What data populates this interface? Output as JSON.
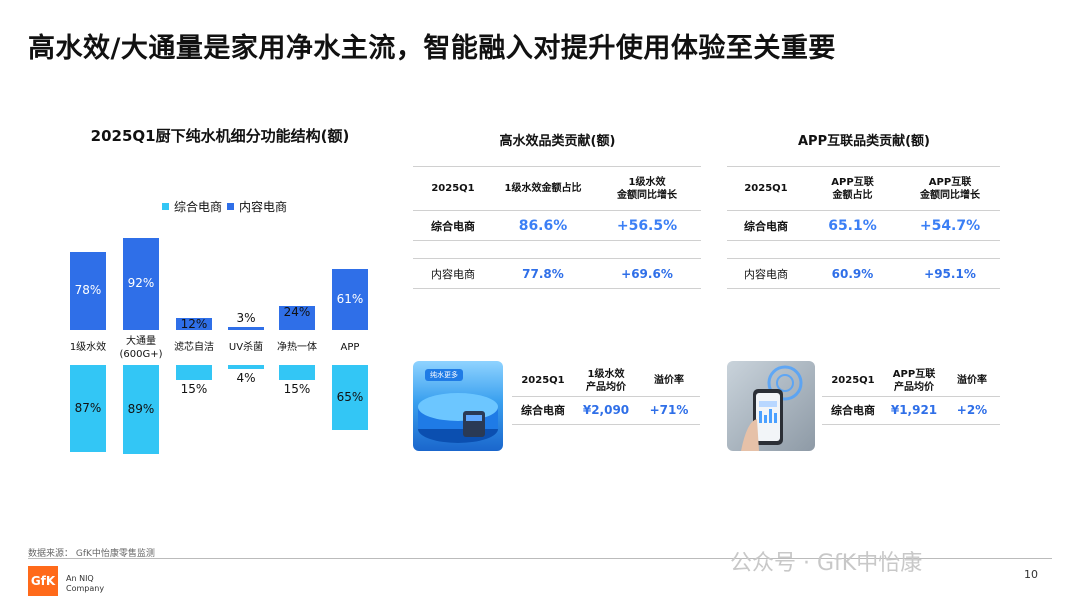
{
  "title": "高水效/大通量是家用净水主流，智能融入对提升使用体验至关重要",
  "chart_data": {
    "type": "bar",
    "title": "2025Q1厨下纯水机细分功能结构(额)",
    "categories": [
      "1级水效",
      "大通量(600G+)",
      "滤芯自洁",
      "UV杀菌",
      "净热一体",
      "APP"
    ],
    "category_labels": [
      [
        "1级水效"
      ],
      [
        "大通量",
        "(600G+)"
      ],
      [
        "滤芯自洁"
      ],
      [
        "UV杀菌"
      ],
      [
        "净热一体"
      ],
      [
        "APP"
      ]
    ],
    "series": [
      {
        "name": "综合电商",
        "color": "#33c6f5",
        "values": [
          87,
          89,
          15,
          4,
          15,
          65
        ],
        "labels": [
          "87%",
          "89%",
          "15%",
          "4%",
          "15%",
          "65%"
        ]
      },
      {
        "name": "内容电商",
        "color": "#2f6fe8",
        "values": [
          78,
          92,
          12,
          3,
          24,
          61
        ],
        "labels": [
          "78%",
          "92%",
          "12%",
          "3%",
          "24%",
          "61%"
        ]
      }
    ],
    "unit": "%",
    "layout_note": "内容电商 bars above the category row, 综合电商 bars below (mirrored)"
  },
  "legend": {
    "item1": "综合电商",
    "item2": "内容电商",
    "color1": "#33c6f5",
    "color2": "#2f6fe8"
  },
  "table_high_eff": {
    "title": "高水效品类贡献(额)",
    "header": [
      "2025Q1",
      "1级水效金额占比",
      "1级水效\n金额同比增长"
    ],
    "rows": [
      {
        "label": "综合电商",
        "share": "86.6%",
        "growth": "+56.5%"
      },
      {
        "label": "内容电商",
        "share": "77.8%",
        "growth": "+69.6%"
      }
    ]
  },
  "table_app": {
    "title": "APP互联品类贡献(额)",
    "header": [
      "2025Q1",
      "APP互联\n金额占比",
      "APP互联\n金额同比增长"
    ],
    "rows": [
      {
        "label": "综合电商",
        "share": "65.1%",
        "growth": "+54.7%"
      },
      {
        "label": "内容电商",
        "share": "60.9%",
        "growth": "+95.1%"
      }
    ]
  },
  "table_price_eff": {
    "header": [
      "2025Q1",
      "1级水效\n产品均价",
      "溢价率"
    ],
    "row": {
      "label": "综合电商",
      "price": "¥2,090",
      "premium": "+71%"
    },
    "image_caption": "纯水更多"
  },
  "table_price_app": {
    "header": [
      "2025Q1",
      "APP互联\n产品均价",
      "溢价率"
    ],
    "row": {
      "label": "综合电商",
      "price": "¥1,921",
      "premium": "+2%"
    }
  },
  "footer": {
    "source": "数据来源：  GfK中怡康零售监测",
    "logo": "GfK",
    "logo_sub1": "An NIQ",
    "logo_sub2": "Company",
    "watermark": "公众号 · GfK中怡康",
    "page": "10"
  }
}
